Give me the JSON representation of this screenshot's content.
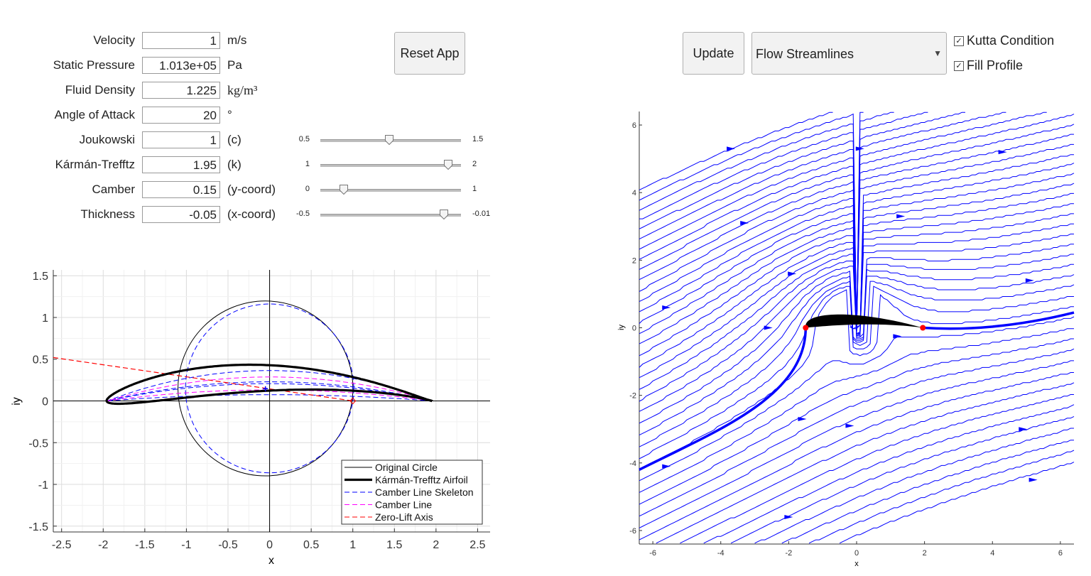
{
  "params": [
    {
      "label": "Velocity",
      "value": "1",
      "unit": "m/s"
    },
    {
      "label": "Static Pressure",
      "value": "1.013e+05",
      "unit": "Pa"
    },
    {
      "label": "Fluid Density",
      "value": "1.225",
      "unit": "kg/m³"
    },
    {
      "label": "Angle of Attack",
      "value": "20",
      "unit": "°"
    },
    {
      "label": "Joukowski",
      "value": "1",
      "unit": "(c)"
    },
    {
      "label": "Kármán-Trefftz",
      "value": "1.95",
      "unit": "(k)"
    },
    {
      "label": "Camber",
      "value": "0.15",
      "unit": "(y-coord)"
    },
    {
      "label": "Thickness",
      "value": "-0.05",
      "unit": "(x-coord)"
    }
  ],
  "sliders": [
    {
      "name": "joukowski",
      "min": "0.5",
      "max": "1.5",
      "value": 1,
      "minv": 0.5,
      "maxv": 1.5
    },
    {
      "name": "karman",
      "min": "1",
      "max": "2",
      "value": 1.95,
      "minv": 1,
      "maxv": 2
    },
    {
      "name": "camber",
      "min": "0",
      "max": "1",
      "value": 0.15,
      "minv": 0,
      "maxv": 1
    },
    {
      "name": "thickness",
      "min": "-0.5",
      "max": "-0.01",
      "value": -0.05,
      "minv": -0.5,
      "maxv": -0.01
    }
  ],
  "buttons": {
    "reset": "Reset App",
    "update": "Update"
  },
  "plot_select": {
    "value": "Flow Streamlines"
  },
  "checkboxes": [
    {
      "label": "Kutta Condition",
      "checked": true
    },
    {
      "label": "Fill Profile",
      "checked": true
    }
  ],
  "colors": {
    "airfoil": "#000000",
    "skeleton": "#0000ff",
    "camber": "#ff00ff",
    "zero_lift": "#ff0000",
    "streamline": "#0000ff"
  },
  "chart_data": [
    {
      "type": "line",
      "xlabel": "x",
      "ylabel": "iy",
      "xlim": [
        -2.6,
        2.65
      ],
      "ylim": [
        -1.57,
        1.57
      ],
      "xticks": [
        "-2.5",
        "-2",
        "-1.5",
        "-1",
        "-0.5",
        "0",
        "0.5",
        "1",
        "1.5",
        "2",
        "2.5"
      ],
      "yticks": [
        "1.5",
        "1",
        "0.5",
        "0",
        "-0.5",
        "-1",
        "-1.5"
      ],
      "grid": true,
      "legend_position": "bottom-right",
      "legend": [
        "Original Circle",
        "Kármán-Trefftz Airfoil",
        "Camber Line Skeleton",
        "Camber Line",
        "Zero-Lift Axis"
      ],
      "circle": {
        "center": [
          -0.05,
          0.15
        ],
        "radius": 1.0512
      },
      "trailing_edge_point": [
        1.0,
        0.0
      ],
      "zero_lift_axis": [
        [
          -2.6,
          0.52
        ],
        [
          1.0,
          0.0
        ]
      ]
    },
    {
      "type": "line",
      "xlabel": "x",
      "ylabel": "iy",
      "xlim": [
        -6.4,
        6.4
      ],
      "ylim": [
        -6.4,
        6.4
      ],
      "xticks": [
        "-6",
        "-4",
        "-2",
        "0",
        "2",
        "4",
        "6"
      ],
      "yticks": [
        "6",
        "4",
        "2",
        "0",
        "-2",
        "-4",
        "-6"
      ],
      "grid": false,
      "stagnation_points": [
        [
          -1.5,
          0.0
        ],
        [
          1.95,
          0.0
        ]
      ]
    }
  ]
}
